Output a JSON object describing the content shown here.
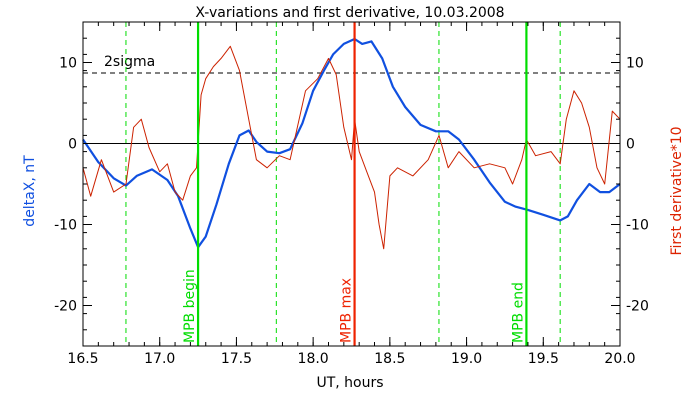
{
  "chart_data": {
    "type": "line",
    "title": "X-variations and first derivative, 10.03.2008",
    "xlabel": "UT, hours",
    "ylabel_left": "deltaX, nT",
    "ylabel_right": "First derivative*10",
    "xlim": [
      16.5,
      20.0
    ],
    "ylim": [
      -25,
      15
    ],
    "xticks": [
      16.5,
      17.0,
      17.5,
      18.0,
      18.5,
      19.0,
      19.5,
      20.0
    ],
    "xtick_labels": [
      "16.5",
      "17.0",
      "17.5",
      "18.0",
      "18.5",
      "19.0",
      "19.5",
      "20.0"
    ],
    "yticks": [
      -20,
      -10,
      0,
      10
    ],
    "ytick_labels": [
      "-20",
      "-10",
      "0",
      "10"
    ],
    "zero_line": 0,
    "sigma_line": {
      "value": 8.7,
      "label": "2sigma"
    },
    "vlines": [
      {
        "x": 17.25,
        "color": "#00dd00",
        "style": "solid",
        "label": "MPB begin"
      },
      {
        "x": 18.27,
        "color": "#ee2200",
        "style": "solid",
        "label": "MPB max"
      },
      {
        "x": 19.39,
        "color": "#00dd00",
        "style": "solid",
        "label": "MPB end"
      },
      {
        "x": 16.78,
        "color": "#00dd00",
        "style": "dashed",
        "label": ""
      },
      {
        "x": 17.76,
        "color": "#00dd00",
        "style": "dashed",
        "label": ""
      },
      {
        "x": 18.82,
        "color": "#00dd00",
        "style": "dashed",
        "label": ""
      },
      {
        "x": 19.61,
        "color": "#00dd00",
        "style": "dashed",
        "label": ""
      }
    ],
    "series": [
      {
        "color": "#1050e0",
        "axis": "left",
        "x": [
          16.5,
          16.6,
          16.7,
          16.78,
          16.85,
          16.95,
          17.05,
          17.12,
          17.2,
          17.25,
          17.3,
          17.37,
          17.45,
          17.52,
          17.58,
          17.63,
          17.7,
          17.78,
          17.85,
          17.93,
          18.0,
          18.07,
          18.13,
          18.2,
          18.27,
          18.32,
          18.38,
          18.45,
          18.52,
          18.6,
          18.7,
          18.8,
          18.88,
          18.95,
          19.05,
          19.15,
          19.25,
          19.32,
          19.4,
          19.5,
          19.61,
          19.66,
          19.72,
          19.8,
          19.87,
          19.93,
          20.0
        ],
        "values": [
          0.5,
          -2.3,
          -4.3,
          -5.2,
          -4.0,
          -3.2,
          -4.5,
          -6.5,
          -10.5,
          -12.8,
          -11.5,
          -7.5,
          -2.5,
          1.0,
          1.6,
          0.2,
          -1.0,
          -1.2,
          -0.7,
          2.5,
          6.5,
          9.0,
          11.0,
          12.3,
          12.9,
          12.3,
          12.6,
          10.5,
          7.0,
          4.5,
          2.3,
          1.5,
          1.5,
          0.5,
          -2.0,
          -4.8,
          -7.2,
          -7.8,
          -8.2,
          -8.8,
          -9.5,
          -9.0,
          -7.0,
          -5.0,
          -6.0,
          -6.0,
          -5.0
        ]
      },
      {
        "color": "#cc2200",
        "axis": "right",
        "x": [
          16.5,
          16.55,
          16.62,
          16.7,
          16.78,
          16.83,
          16.88,
          16.93,
          17.0,
          17.05,
          17.1,
          17.15,
          17.2,
          17.24,
          17.27,
          17.3,
          17.35,
          17.4,
          17.46,
          17.52,
          17.58,
          17.63,
          17.7,
          17.78,
          17.85,
          17.95,
          18.03,
          18.1,
          18.15,
          18.2,
          18.25,
          18.27,
          18.3,
          18.35,
          18.4,
          18.43,
          18.46,
          18.5,
          18.55,
          18.65,
          18.75,
          18.82,
          18.88,
          18.95,
          19.05,
          19.15,
          19.25,
          19.3,
          19.36,
          19.39,
          19.45,
          19.55,
          19.61,
          19.65,
          19.7,
          19.75,
          19.8,
          19.85,
          19.9,
          19.95,
          20.0
        ],
        "values": [
          -3.0,
          -6.5,
          -2.0,
          -6.0,
          -5.0,
          2.0,
          3.0,
          -0.5,
          -3.5,
          -2.5,
          -6.0,
          -7.0,
          -4.0,
          -3.0,
          6.0,
          8.0,
          9.5,
          10.5,
          12.0,
          9.0,
          3.0,
          -2.0,
          -3.0,
          -1.5,
          -2.0,
          6.5,
          8.0,
          10.5,
          8.5,
          2.0,
          -2.0,
          3.0,
          -1.0,
          -3.5,
          -6.0,
          -10.0,
          -13.0,
          -4.0,
          -3.0,
          -4.0,
          -2.0,
          1.0,
          -3.0,
          -1.0,
          -3.0,
          -2.5,
          -3.0,
          -5.0,
          -2.0,
          0.5,
          -1.5,
          -1.0,
          -2.5,
          3.0,
          6.5,
          5.0,
          2.0,
          -3.0,
          -5.0,
          4.0,
          3.0
        ]
      }
    ]
  }
}
